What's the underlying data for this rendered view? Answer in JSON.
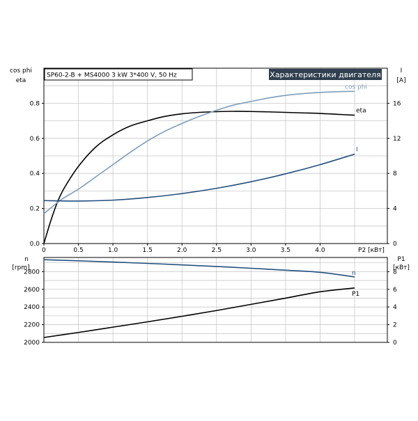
{
  "colors": {
    "background": "#ffffff",
    "grid": "#c8c8c8",
    "header_box": "#2f3f4f",
    "header_text": "#ffffff"
  },
  "chart_data": [
    {
      "type": "line",
      "title": "SP60-2-B + MS4000  3 kW  3*400 V, 50 Hz",
      "header": "Характеристики двигателя",
      "grid": true,
      "xlabel": "P2 [кВт]",
      "x_ticks": [
        "0",
        "0.5",
        "1.0",
        "1.5",
        "2.0",
        "2.5",
        "3.0",
        "3.5",
        "4.0"
      ],
      "xlim": [
        0,
        5
      ],
      "ylabel_left": [
        "cos phi",
        "eta"
      ],
      "ylim_left": [
        0,
        1.0
      ],
      "y_ticks_left": [
        "0.0",
        "0.2",
        "0.4",
        "0.6",
        "0.8"
      ],
      "ylabel_right": [
        "I",
        "[A]"
      ],
      "ylim_right": [
        0,
        20
      ],
      "y_ticks_right": [
        "0",
        "4",
        "8",
        "12",
        "16"
      ],
      "series": [
        {
          "name": "eta",
          "axis": "left",
          "color": "#000000",
          "x": [
            0,
            0.1,
            0.2,
            0.3,
            0.5,
            0.75,
            1.0,
            1.25,
            1.5,
            1.75,
            2.0,
            2.25,
            2.5,
            2.75,
            3.0,
            3.25,
            3.5,
            3.75,
            4.0,
            4.25,
            4.5
          ],
          "y": [
            0,
            0.13,
            0.24,
            0.32,
            0.44,
            0.55,
            0.62,
            0.67,
            0.7,
            0.725,
            0.74,
            0.748,
            0.752,
            0.754,
            0.753,
            0.751,
            0.748,
            0.745,
            0.742,
            0.737,
            0.732
          ]
        },
        {
          "name": "cos phi",
          "axis": "left",
          "color": "#7c9dba",
          "x": [
            0,
            0.25,
            0.5,
            0.75,
            1.0,
            1.25,
            1.5,
            1.75,
            2.0,
            2.25,
            2.5,
            2.75,
            3.0,
            3.25,
            3.5,
            3.75,
            4.0,
            4.25,
            4.5
          ],
          "y": [
            0.17,
            0.25,
            0.31,
            0.38,
            0.45,
            0.52,
            0.585,
            0.64,
            0.685,
            0.725,
            0.76,
            0.79,
            0.81,
            0.83,
            0.845,
            0.855,
            0.862,
            0.866,
            0.868
          ]
        },
        {
          "name": "I",
          "axis": "right",
          "color": "#224f7f",
          "x": [
            0,
            0.5,
            1.0,
            1.5,
            2.0,
            2.5,
            3.0,
            3.5,
            4.0,
            4.5
          ],
          "y": [
            4.9,
            4.85,
            4.95,
            5.25,
            5.7,
            6.3,
            7.05,
            7.95,
            9.0,
            10.2
          ]
        }
      ]
    },
    {
      "type": "line",
      "grid": true,
      "xlim": [
        0,
        5
      ],
      "ylabel_left": [
        "n",
        "[rpm]"
      ],
      "ylim_left": [
        2000,
        2960
      ],
      "y_ticks_left": [
        "2000",
        "2200",
        "2400",
        "2600",
        "2800"
      ],
      "ylabel_right": [
        "P1",
        "[кВт]"
      ],
      "ylim_right": [
        0,
        9.6
      ],
      "y_ticks_right": [
        "0",
        "2",
        "4",
        "6",
        "8"
      ],
      "series": [
        {
          "name": "n",
          "axis": "left",
          "color": "#224f7f",
          "x": [
            0,
            0.5,
            1.0,
            1.5,
            2.0,
            2.5,
            3.0,
            3.5,
            4.0,
            4.5
          ],
          "y": [
            2935,
            2922,
            2908,
            2893,
            2876,
            2858,
            2838,
            2816,
            2792,
            2740
          ]
        },
        {
          "name": "P1",
          "axis": "right",
          "color": "#000000",
          "x": [
            0,
            0.5,
            1.0,
            1.5,
            2.0,
            2.5,
            3.0,
            3.5,
            4.0,
            4.5
          ],
          "y": [
            0.55,
            1.12,
            1.72,
            2.32,
            2.95,
            3.6,
            4.3,
            5.0,
            5.72,
            6.15
          ]
        }
      ]
    }
  ]
}
